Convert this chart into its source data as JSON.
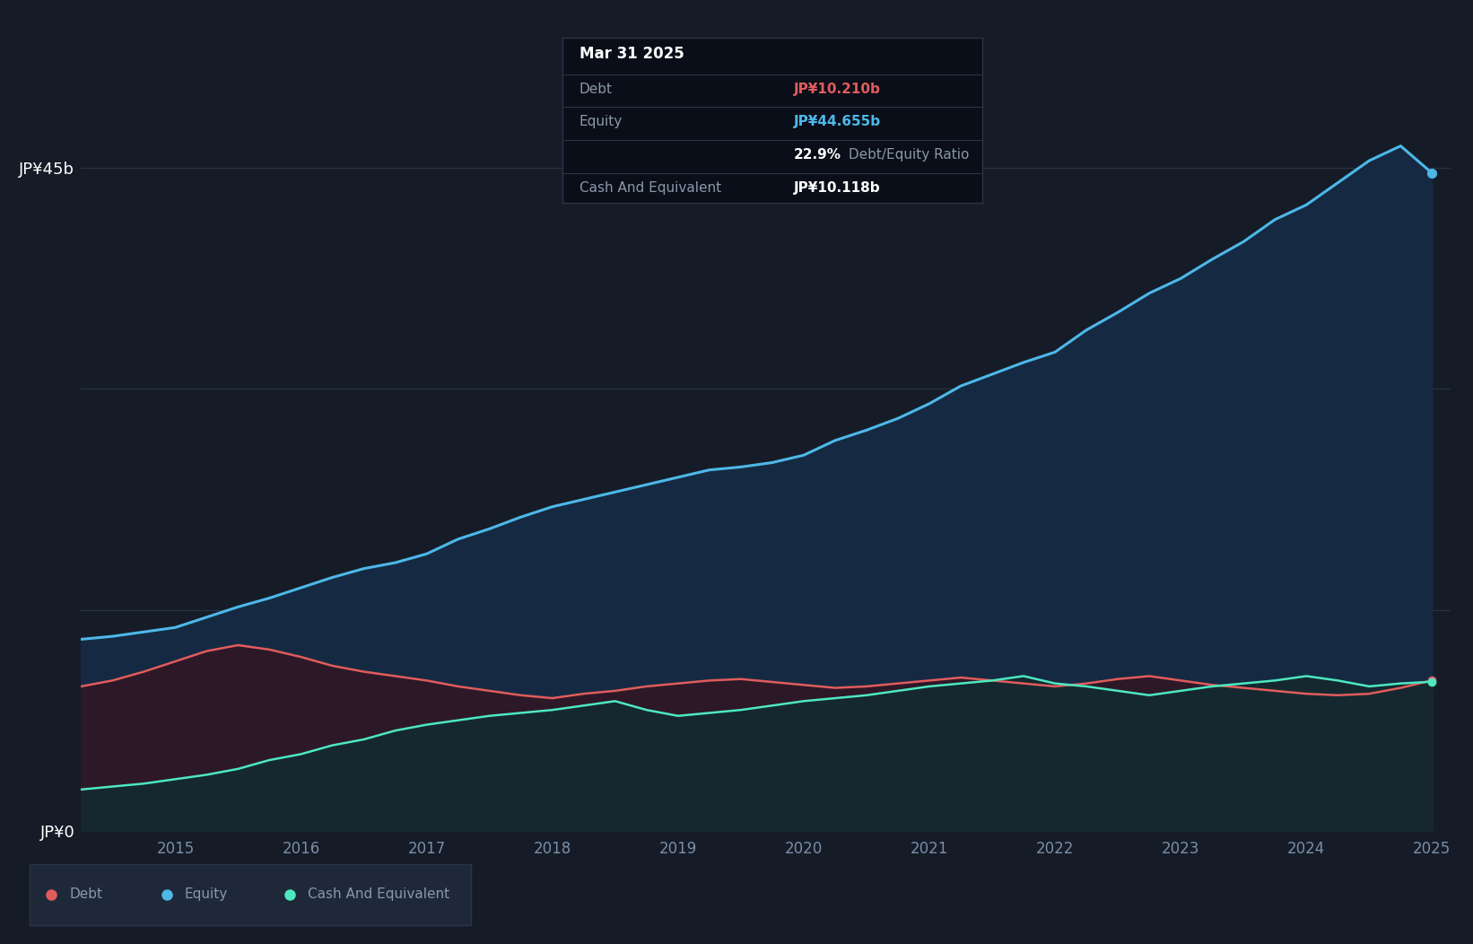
{
  "background_color": "#151c28",
  "plot_bg_color": "#151c28",
  "grid_color": "#2a3448",
  "ylabel_top": "JP¥45b",
  "ylabel_bottom": "JP¥0",
  "x_ticks": [
    2015,
    2016,
    2017,
    2018,
    2019,
    2020,
    2021,
    2022,
    2023,
    2024,
    2025
  ],
  "debt_color": "#e05c5c",
  "equity_color": "#4db8e8",
  "cash_color": "#4de8c0",
  "tooltip_title": "Mar 31 2025",
  "tooltip_debt_label": "Debt",
  "tooltip_debt_value": "JP¥10.210b",
  "tooltip_equity_label": "Equity",
  "tooltip_equity_value": "JP¥44.655b",
  "tooltip_ratio_prefix": "22.9%",
  "tooltip_ratio_suffix": " Debt/Equity Ratio",
  "tooltip_cash_label": "Cash And Equivalent",
  "tooltip_cash_value": "JP¥10.118b",
  "legend_debt": "Debt",
  "legend_equity": "Equity",
  "legend_cash": "Cash And Equivalent",
  "years": [
    2014.25,
    2014.5,
    2014.75,
    2015.0,
    2015.25,
    2015.5,
    2015.75,
    2016.0,
    2016.25,
    2016.5,
    2016.75,
    2017.0,
    2017.25,
    2017.5,
    2017.75,
    2018.0,
    2018.25,
    2018.5,
    2018.75,
    2019.0,
    2019.25,
    2019.5,
    2019.75,
    2020.0,
    2020.25,
    2020.5,
    2020.75,
    2021.0,
    2021.25,
    2021.5,
    2021.75,
    2022.0,
    2022.25,
    2022.5,
    2022.75,
    2023.0,
    2023.25,
    2023.5,
    2023.75,
    2024.0,
    2024.25,
    2024.5,
    2024.75,
    2025.0
  ],
  "equity_data": [
    13.0,
    13.2,
    13.5,
    13.8,
    14.5,
    15.2,
    15.8,
    16.5,
    17.2,
    17.8,
    18.2,
    18.8,
    19.8,
    20.5,
    21.3,
    22.0,
    22.5,
    23.0,
    23.5,
    24.0,
    24.5,
    24.7,
    25.0,
    25.5,
    26.5,
    27.2,
    28.0,
    29.0,
    30.2,
    31.0,
    31.8,
    32.5,
    34.0,
    35.2,
    36.5,
    37.5,
    38.8,
    40.0,
    41.5,
    42.5,
    44.0,
    45.5,
    46.5,
    44.655
  ],
  "debt_data": [
    9.8,
    10.2,
    10.8,
    11.5,
    12.2,
    12.6,
    12.3,
    11.8,
    11.2,
    10.8,
    10.5,
    10.2,
    9.8,
    9.5,
    9.2,
    9.0,
    9.3,
    9.5,
    9.8,
    10.0,
    10.2,
    10.3,
    10.1,
    9.9,
    9.7,
    9.8,
    10.0,
    10.2,
    10.4,
    10.2,
    10.0,
    9.8,
    10.0,
    10.3,
    10.5,
    10.2,
    9.9,
    9.7,
    9.5,
    9.3,
    9.2,
    9.3,
    9.7,
    10.21
  ],
  "cash_data": [
    2.8,
    3.0,
    3.2,
    3.5,
    3.8,
    4.2,
    4.8,
    5.2,
    5.8,
    6.2,
    6.8,
    7.2,
    7.5,
    7.8,
    8.0,
    8.2,
    8.5,
    8.8,
    8.2,
    7.8,
    8.0,
    8.2,
    8.5,
    8.8,
    9.0,
    9.2,
    9.5,
    9.8,
    10.0,
    10.2,
    10.5,
    10.0,
    9.8,
    9.5,
    9.2,
    9.5,
    9.8,
    10.0,
    10.2,
    10.5,
    10.2,
    9.8,
    10.0,
    10.118
  ],
  "ylim": [
    0,
    50
  ],
  "xlim_start": 2014.25,
  "xlim_end": 2025.15
}
